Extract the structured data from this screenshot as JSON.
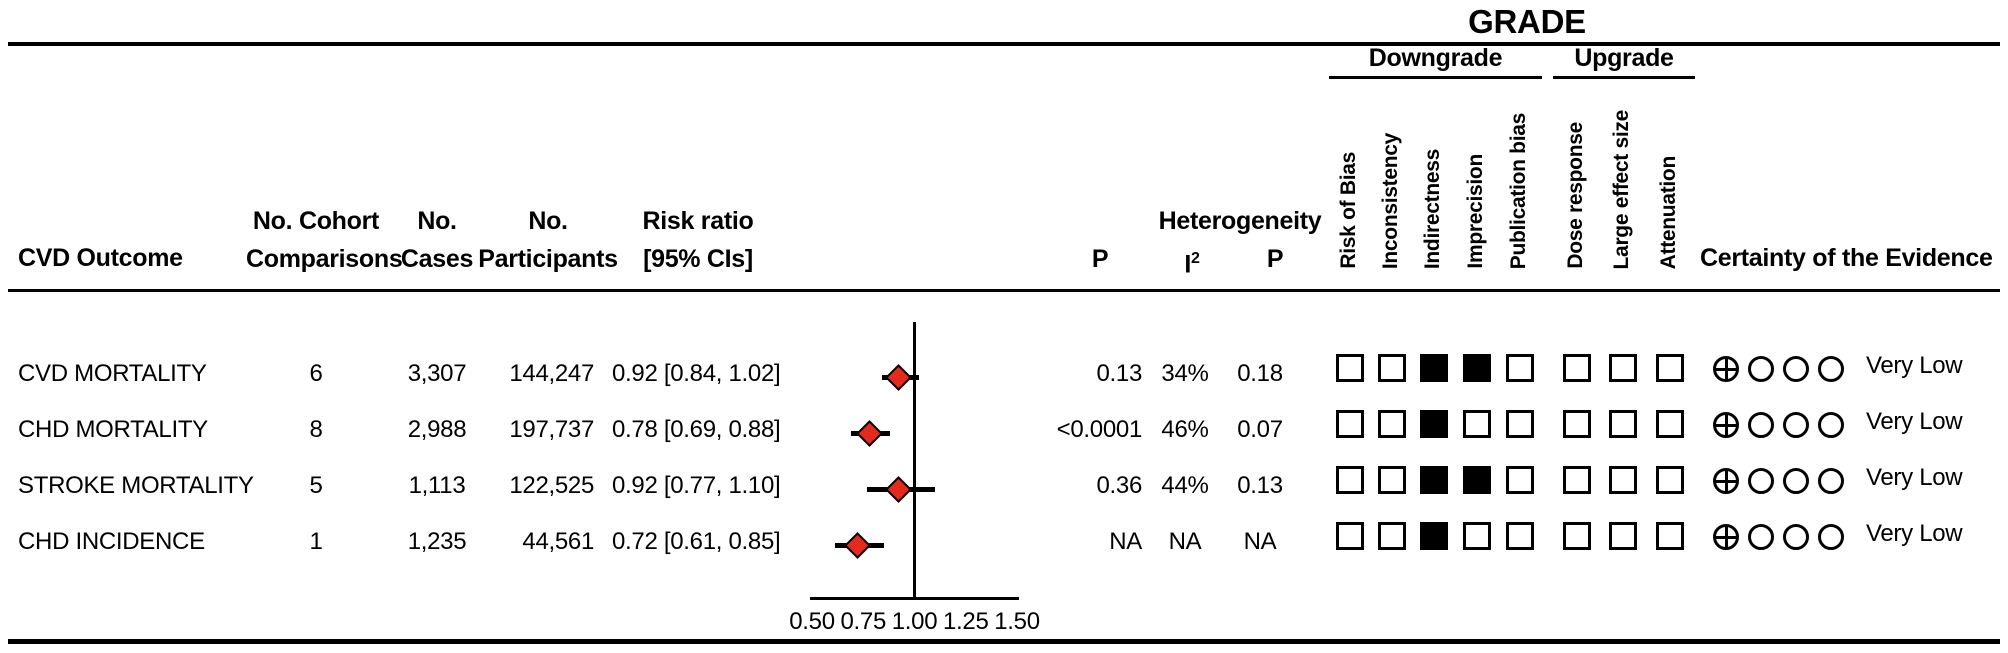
{
  "title": "GRADE",
  "grade_groups": {
    "downgrade": {
      "label": "Downgrade",
      "columns": [
        "Risk of Bias",
        "Inconsistency",
        "Indirectness",
        "Imprecision",
        "Publication bias"
      ]
    },
    "upgrade": {
      "label": "Upgrade",
      "columns": [
        "Dose response",
        "Large effect size",
        "Attenuation"
      ]
    }
  },
  "headers": {
    "outcome": "CVD Outcome",
    "cohort_line1": "No. Cohort",
    "cohort_line2": "Comparisons",
    "cases_line1": "No.",
    "cases_line2": "Cases",
    "participants_line1": "No.",
    "participants_line2": "Participants",
    "risk_line1": "Risk ratio",
    "risk_line2": "[95% CIs]",
    "p": "P",
    "heterogeneity": "Heterogeneity",
    "i2_base": "I",
    "i2_sup": "2",
    "p_het": "P",
    "certainty": "Certainty of the Evidence"
  },
  "rows": [
    {
      "outcome": "CVD MORTALITY",
      "comparisons": "6",
      "cases": "3,307",
      "participants": "144,247",
      "risk_ratio_text": "0.92 [0.84, 1.02]",
      "p": "0.13",
      "i2": "34%",
      "p_het": "0.18",
      "downgrade": [
        0,
        0,
        1,
        1,
        0
      ],
      "upgrade": [
        0,
        0,
        0
      ],
      "certainty_symbols": [
        "circle-plus",
        "circle",
        "circle",
        "circle"
      ],
      "certainty_label": "Very Low"
    },
    {
      "outcome": "CHD MORTALITY",
      "comparisons": "8",
      "cases": "2,988",
      "participants": "197,737",
      "risk_ratio_text": "0.78 [0.69, 0.88]",
      "p": "<0.0001",
      "i2": "46%",
      "p_het": "0.07",
      "downgrade": [
        0,
        0,
        1,
        0,
        0
      ],
      "upgrade": [
        0,
        0,
        0
      ],
      "certainty_symbols": [
        "circle-plus",
        "circle",
        "circle",
        "circle"
      ],
      "certainty_label": "Very Low"
    },
    {
      "outcome": "STROKE MORTALITY",
      "comparisons": "5",
      "cases": "1,113",
      "participants": "122,525",
      "risk_ratio_text": "0.92 [0.77, 1.10]",
      "p": "0.36",
      "i2": "44%",
      "p_het": "0.13",
      "downgrade": [
        0,
        0,
        1,
        1,
        0
      ],
      "upgrade": [
        0,
        0,
        0
      ],
      "certainty_symbols": [
        "circle-plus",
        "circle",
        "circle",
        "circle"
      ],
      "certainty_label": "Very Low"
    },
    {
      "outcome": "CHD INCIDENCE",
      "comparisons": "1",
      "cases": "1,235",
      "participants": "44,561",
      "risk_ratio_text": "0.72 [0.61, 0.85]",
      "p": "NA",
      "i2": "NA",
      "p_het": "NA",
      "downgrade": [
        0,
        0,
        1,
        0,
        0
      ],
      "upgrade": [
        0,
        0,
        0
      ],
      "certainty_symbols": [
        "circle-plus",
        "circle",
        "circle",
        "circle"
      ],
      "certainty_label": "Very Low"
    }
  ],
  "chart_data": {
    "type": "scatter",
    "subtype": "forest-plot",
    "title": "",
    "xlabel": "Risk ratio",
    "ylabel": "",
    "xlim": [
      0.5,
      1.5
    ],
    "x_tick_values": [
      0.5,
      0.75,
      1.0,
      1.25,
      1.5
    ],
    "x_tick_labels": [
      "0.50",
      "0.75",
      "1.00",
      "1.25",
      "1.50"
    ],
    "reference_line": 1.0,
    "grid": false,
    "points": [
      {
        "label": "CVD MORTALITY",
        "rr": 0.92,
        "ci_low": 0.84,
        "ci_high": 1.02
      },
      {
        "label": "CHD MORTALITY",
        "rr": 0.78,
        "ci_low": 0.69,
        "ci_high": 0.88
      },
      {
        "label": "STROKE MORTALITY",
        "rr": 0.92,
        "ci_low": 0.77,
        "ci_high": 1.1
      },
      {
        "label": "CHD INCIDENCE",
        "rr": 0.72,
        "ci_low": 0.61,
        "ci_high": 0.85
      }
    ],
    "marker": {
      "shape": "diamond",
      "fill": "#e42a1d",
      "border": "#000000"
    }
  },
  "colors": {
    "marker_red": "#e42a1d",
    "ink": "#000000",
    "background": "#ffffff"
  }
}
